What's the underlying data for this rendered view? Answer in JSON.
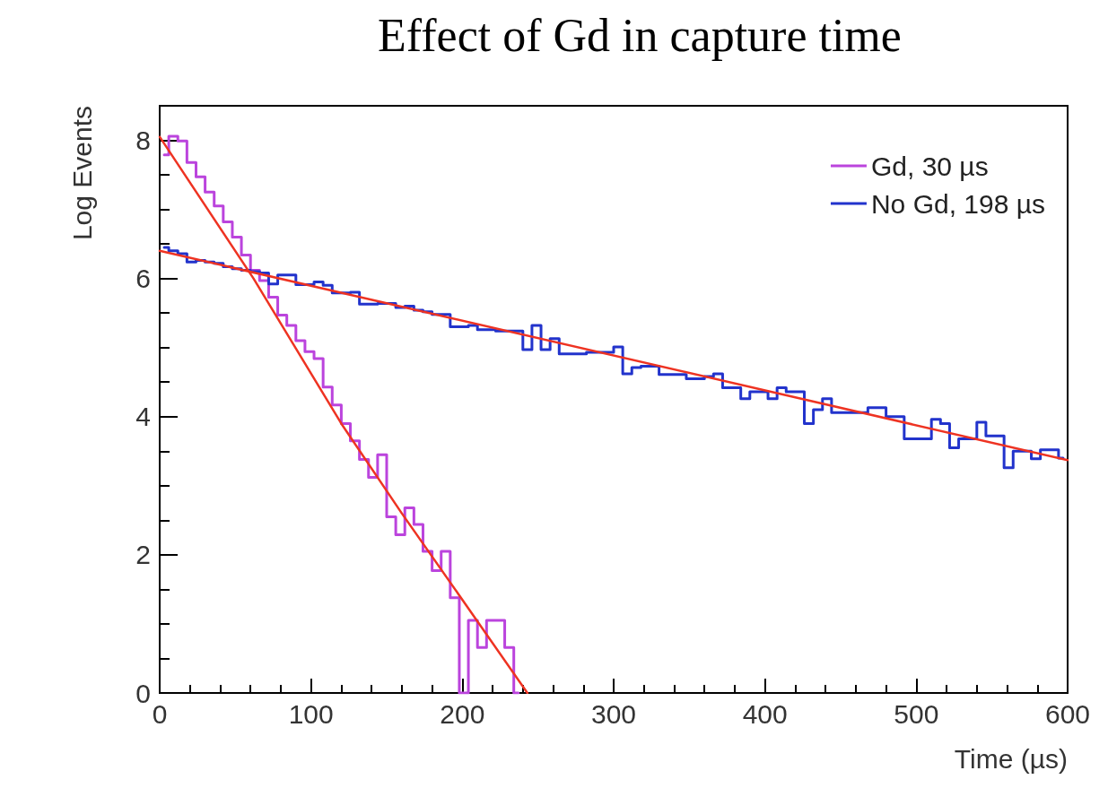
{
  "chart_data": {
    "type": "step",
    "title": "Effect of Gd in capture time",
    "xlabel": "Time (µs)",
    "ylabel": "Log Events",
    "xlim": [
      0,
      600
    ],
    "xticks": [
      0,
      100,
      200,
      300,
      400,
      500,
      600
    ],
    "ylim": [
      0,
      8.5
    ],
    "yticks": [
      0,
      2,
      4,
      6,
      8
    ],
    "grid": false,
    "legend": "top right",
    "marker": "none",
    "line_style": "solid",
    "series": [
      {
        "name": "Gd, 30 µs",
        "color": "#bb44dd",
        "x": [
          3,
          9,
          15,
          21,
          27,
          33,
          39,
          45,
          51,
          57,
          63,
          69,
          75,
          81,
          87,
          93,
          99,
          105,
          111,
          117,
          123,
          129,
          135,
          141,
          147,
          153,
          159,
          165,
          171,
          177,
          183,
          189,
          195,
          201,
          207,
          213,
          219,
          225,
          231,
          237
        ],
        "values": [
          7.79,
          8.06,
          7.99,
          7.68,
          7.47,
          7.25,
          7.05,
          6.82,
          6.6,
          6.34,
          6.12,
          5.97,
          5.73,
          5.47,
          5.32,
          5.1,
          4.94,
          4.84,
          4.43,
          4.17,
          3.9,
          3.65,
          3.38,
          3.12,
          3.45,
          2.55,
          2.29,
          2.68,
          2.44,
          2.05,
          1.77,
          2.05,
          1.38,
          0,
          1.05,
          0.66,
          1.05,
          1.05,
          0.66,
          0
        ]
      },
      {
        "name": "No Gd, 198 µs",
        "color": "#2233cc",
        "x": [
          3,
          9,
          15,
          21,
          27,
          33,
          39,
          45,
          51,
          57,
          63,
          69,
          75,
          81,
          87,
          93,
          99,
          105,
          111,
          117,
          123,
          129,
          135,
          141,
          147,
          153,
          159,
          165,
          171,
          177,
          183,
          189,
          195,
          201,
          207,
          213,
          219,
          225,
          231,
          237,
          243,
          249,
          255,
          261,
          267,
          273,
          279,
          285,
          291,
          297,
          303,
          309,
          315,
          321,
          327,
          333,
          339,
          345,
          351,
          357,
          363,
          369,
          375,
          381,
          387,
          393,
          399,
          405,
          411,
          417,
          423,
          429,
          435,
          441,
          447,
          453,
          459,
          465,
          471,
          477,
          483,
          489,
          495,
          501,
          507,
          513,
          519,
          525,
          531,
          537,
          543,
          549,
          555,
          561,
          567,
          573,
          579,
          585,
          591,
          597
        ],
        "values": [
          6.45,
          6.4,
          6.36,
          6.24,
          6.26,
          6.24,
          6.22,
          6.17,
          6.14,
          6.12,
          6.1,
          6.08,
          5.92,
          6.05,
          6.05,
          5.91,
          5.91,
          5.95,
          5.9,
          5.79,
          5.79,
          5.8,
          5.63,
          5.63,
          5.64,
          5.64,
          5.58,
          5.6,
          5.54,
          5.52,
          5.48,
          5.48,
          5.3,
          5.3,
          5.32,
          5.26,
          5.26,
          5.24,
          5.24,
          5.24,
          4.97,
          5.32,
          4.97,
          5.13,
          4.91,
          4.91,
          4.91,
          4.93,
          4.93,
          4.93,
          5.01,
          4.62,
          4.71,
          4.73,
          4.73,
          4.61,
          4.61,
          4.61,
          4.55,
          4.55,
          4.58,
          4.62,
          4.42,
          4.42,
          4.26,
          4.36,
          4.36,
          4.26,
          4.42,
          4.36,
          4.36,
          3.9,
          4.1,
          4.26,
          4.06,
          4.06,
          4.06,
          4.06,
          4.13,
          4.13,
          4,
          4,
          3.68,
          3.68,
          3.68,
          3.96,
          3.9,
          3.55,
          3.68,
          3.68,
          3.92,
          3.72,
          3.72,
          3.26,
          3.5,
          3.5,
          3.39,
          3.52,
          3.52,
          3.4
        ]
      },
      {
        "type": "line",
        "color": "#ee3322",
        "x": [
          0,
          62,
          120,
          160,
          200,
          243
        ],
        "values": [
          8.05,
          6.0,
          3.9,
          2.6,
          1.35,
          0
        ]
      },
      {
        "type": "line",
        "color": "#ee3322",
        "x": [
          0,
          600
        ],
        "values": [
          6.4,
          3.37
        ]
      }
    ]
  }
}
